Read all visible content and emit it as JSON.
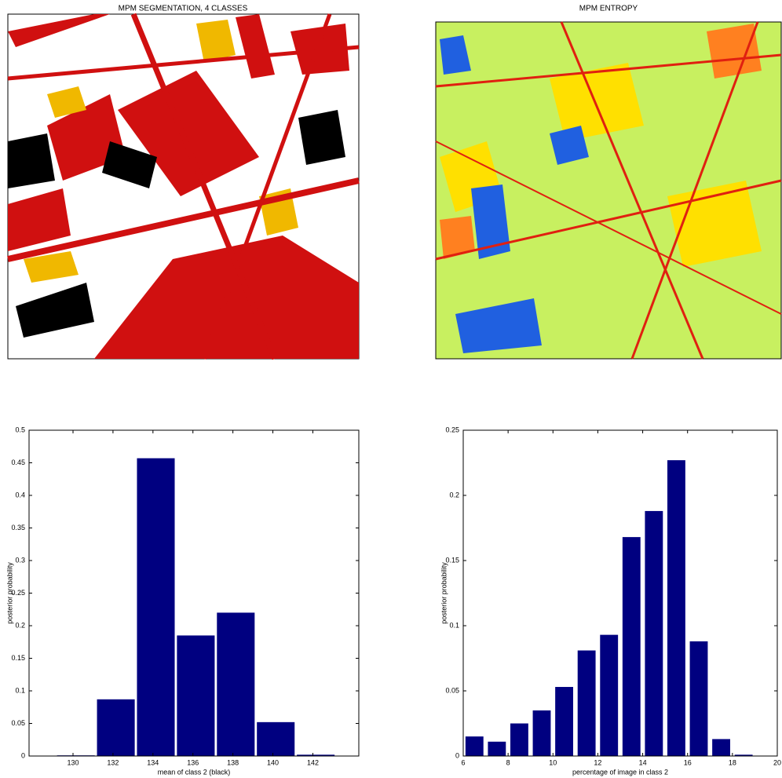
{
  "images": [
    {
      "title": "MPM SEGMENTATION, 4 CLASSES"
    },
    {
      "title": "MPM ENTROPY"
    }
  ],
  "chart_data": [
    {
      "type": "bar",
      "xlabel": "mean of class 2 (black)",
      "ylabel": "posterior probability",
      "color": "#000080",
      "x": [
        130,
        132,
        134,
        136,
        138,
        140,
        142
      ],
      "values": [
        0.001,
        0.087,
        0.457,
        0.185,
        0.22,
        0.052,
        0.002
      ],
      "xlim": [
        127.8,
        144.3
      ],
      "xticks": [
        130,
        132,
        134,
        136,
        138,
        140,
        142
      ],
      "ylim": [
        0,
        0.5
      ],
      "yticks": [
        0,
        0.05,
        0.1,
        0.15,
        0.2,
        0.25,
        0.3,
        0.35,
        0.4,
        0.45,
        0.5
      ],
      "grid": false
    },
    {
      "type": "bar",
      "xlabel": "percentage of image in class 2",
      "ylabel": "posterior probability",
      "color": "#000080",
      "x": [
        6.5,
        7.5,
        8.5,
        9.5,
        10.5,
        11.5,
        12.5,
        13.5,
        14.5,
        15.5,
        16.5,
        17.5,
        18.5
      ],
      "values": [
        0.015,
        0.011,
        0.025,
        0.035,
        0.053,
        0.081,
        0.093,
        0.168,
        0.188,
        0.227,
        0.088,
        0.013,
        0.001
      ],
      "xlim": [
        6,
        20
      ],
      "xticks": [
        6,
        8,
        10,
        12,
        14,
        16,
        18,
        20
      ],
      "ylim": [
        0,
        0.25
      ],
      "yticks": [
        0,
        0.05,
        0.1,
        0.15,
        0.2,
        0.25
      ],
      "grid": false
    }
  ]
}
